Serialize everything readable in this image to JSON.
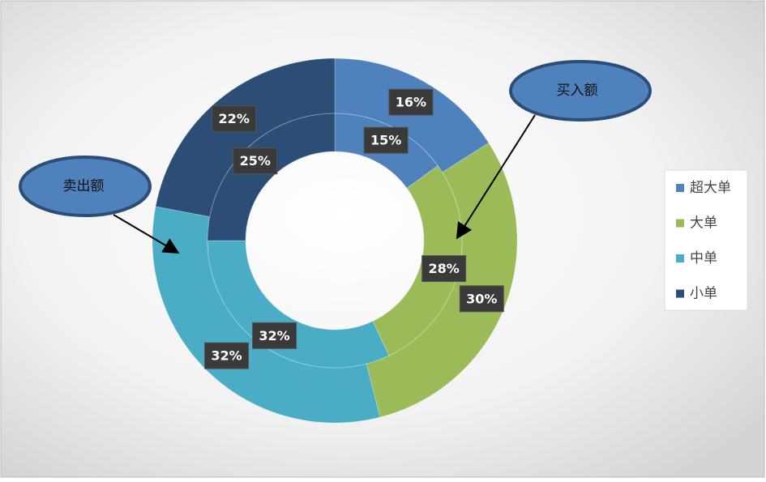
{
  "chart_data": {
    "type": "doughnut",
    "categories": [
      "超大单",
      "大单",
      "中单",
      "小单"
    ],
    "colors": [
      "#4f81bd",
      "#9bbb59",
      "#4bacc6",
      "#2c4d75"
    ],
    "series": [
      {
        "name": "卖出额",
        "values": [
          16,
          30,
          32,
          22
        ],
        "value_labels": [
          "16%",
          "30%",
          "32%",
          "22%"
        ]
      },
      {
        "name": "买入额",
        "values": [
          15,
          28,
          32,
          25
        ],
        "value_labels": [
          "15%",
          "28%",
          "32%",
          "25%"
        ]
      }
    ],
    "legend": "right"
  }
}
